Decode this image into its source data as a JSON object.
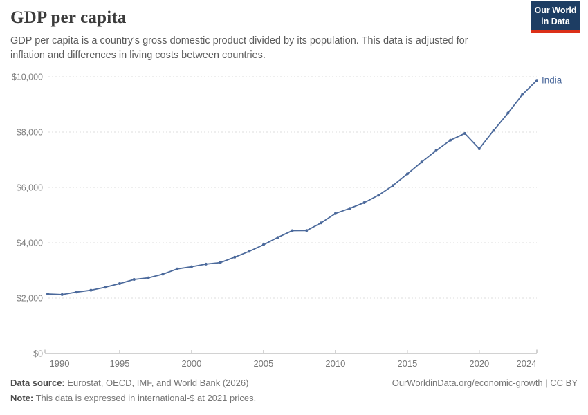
{
  "header": {
    "title": "GDP per capita",
    "subtitle": "GDP per capita is a country's gross domestic product divided by its population. This data is adjusted for inflation and differences in living costs between countries.",
    "logo": {
      "line1": "Our World",
      "line2": "in Data",
      "bg_color": "#1d3d63",
      "accent_color": "#dc3018"
    }
  },
  "chart_data": {
    "type": "line",
    "title": "GDP per capita",
    "xlabel": "",
    "ylabel": "",
    "xlim": [
      1990,
      2024
    ],
    "ylim": [
      0,
      10000
    ],
    "grid": "horizontal-dashed",
    "legend_position": "end-of-line-label",
    "line_color": "#4c6a9c",
    "axis_color": "#a6a6a6",
    "grid_color": "#dcdcdc",
    "tick_label_color": "#7d7d7d",
    "series": [
      {
        "name": "India",
        "color": "#4c6a9c",
        "x": [
          1990,
          1991,
          1992,
          1993,
          1994,
          1995,
          1996,
          1997,
          1998,
          1999,
          2000,
          2001,
          2002,
          2003,
          2004,
          2005,
          2006,
          2007,
          2008,
          2009,
          2010,
          2011,
          2012,
          2013,
          2014,
          2015,
          2016,
          2017,
          2018,
          2019,
          2020,
          2021,
          2022,
          2023,
          2024
        ],
        "values": [
          2151,
          2128,
          2218,
          2284,
          2395,
          2526,
          2676,
          2736,
          2865,
          3056,
          3135,
          3227,
          3284,
          3481,
          3690,
          3928,
          4196,
          4438,
          4442,
          4718,
          5057,
          5242,
          5451,
          5719,
          6069,
          6491,
          6920,
          7330,
          7710,
          7950,
          7400,
          8060,
          8690,
          9360,
          9870
        ]
      }
    ],
    "x_ticks": [
      {
        "year": 1990,
        "label": "1990",
        "nudge": 17,
        "tick": false
      },
      {
        "year": 1995,
        "label": "1995",
        "nudge": 0,
        "tick": true
      },
      {
        "year": 2000,
        "label": "2000",
        "nudge": 0,
        "tick": true
      },
      {
        "year": 2005,
        "label": "2005",
        "nudge": 0,
        "tick": true
      },
      {
        "year": 2010,
        "label": "2010",
        "nudge": 0,
        "tick": true
      },
      {
        "year": 2015,
        "label": "2015",
        "nudge": 0,
        "tick": true
      },
      {
        "year": 2020,
        "label": "2020",
        "nudge": 0,
        "tick": true
      },
      {
        "year": 2024,
        "label": "2024",
        "nudge": -15,
        "tick": false
      }
    ],
    "y_ticks": [
      {
        "value": 0,
        "label": "$0"
      },
      {
        "value": 2000,
        "label": "$2,000"
      },
      {
        "value": 4000,
        "label": "$4,000"
      },
      {
        "value": 6000,
        "label": "$6,000"
      },
      {
        "value": 8000,
        "label": "$8,000"
      },
      {
        "value": 10000,
        "label": "$10,000"
      }
    ],
    "end_label": "India"
  },
  "footer": {
    "source_label": "Data source:",
    "source_text": " Eurostat, OECD, IMF, and World Bank (2026)",
    "note_label": "Note:",
    "note_text": " This data is expressed in international-$ at 2021 prices.",
    "attribution": "OurWorldinData.org/economic-growth | CC BY"
  }
}
